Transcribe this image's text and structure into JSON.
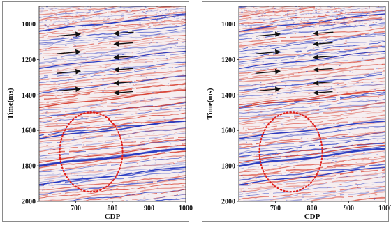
{
  "figure": {
    "panels": [
      {
        "id": "left",
        "xlabel": "CDP",
        "ylabel": "Time(ms)",
        "x_ticks": [
          "700",
          "800",
          "900",
          "1000"
        ],
        "y_ticks": [
          "1000",
          "1200",
          "1400",
          "1600",
          "1800",
          "2000"
        ],
        "arrows_left": 4,
        "arrows_right": 6
      },
      {
        "id": "right",
        "xlabel": "CDP",
        "ylabel": "Time(ms)",
        "x_ticks": [
          "700",
          "800",
          "900",
          "1000"
        ],
        "y_ticks": [
          "1000",
          "1200",
          "1400",
          "1600",
          "1800",
          "2000"
        ],
        "arrows_left": 4,
        "arrows_right": 6
      }
    ],
    "colors": {
      "positive_amplitude": "#1a2fbf",
      "negative_amplitude": "#d63a2a",
      "ellipse": "#e0201c",
      "arrow": "#111111",
      "frame": "#8a8a8a"
    },
    "x_range": [
      600,
      1000
    ],
    "y_range": [
      900,
      2000
    ]
  }
}
